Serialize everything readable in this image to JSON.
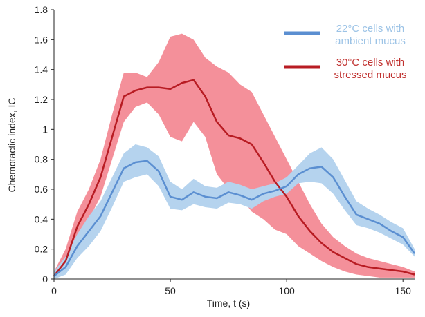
{
  "chart_data": {
    "type": "band-line",
    "x_label": "Time, t (s)",
    "y_label": "Chemotactic index, IC",
    "x": [
      0,
      5,
      10,
      15,
      20,
      25,
      30,
      35,
      40,
      45,
      50,
      55,
      60,
      65,
      70,
      75,
      80,
      85,
      90,
      95,
      100,
      105,
      110,
      115,
      120,
      125,
      130,
      135,
      140,
      145,
      150,
      155
    ],
    "series": [
      {
        "name": "22°C cells with ambient mucus",
        "color": "#5b8fd1",
        "band_color": "#b5d3ee",
        "text_color": "#9cc3e6",
        "values": [
          0.02,
          0.08,
          0.22,
          0.32,
          0.42,
          0.58,
          0.74,
          0.78,
          0.79,
          0.72,
          0.55,
          0.53,
          0.58,
          0.55,
          0.54,
          0.58,
          0.56,
          0.53,
          0.57,
          0.59,
          0.62,
          0.7,
          0.74,
          0.75,
          0.68,
          0.55,
          0.43,
          0.4,
          0.37,
          0.32,
          0.28,
          0.17
        ],
        "upper": [
          0.05,
          0.15,
          0.3,
          0.42,
          0.52,
          0.68,
          0.84,
          0.9,
          0.88,
          0.82,
          0.65,
          0.6,
          0.67,
          0.62,
          0.61,
          0.65,
          0.63,
          0.6,
          0.62,
          0.64,
          0.68,
          0.76,
          0.84,
          0.88,
          0.8,
          0.66,
          0.52,
          0.47,
          0.43,
          0.38,
          0.34,
          0.2
        ],
        "lower": [
          0,
          0.03,
          0.14,
          0.22,
          0.32,
          0.48,
          0.65,
          0.68,
          0.7,
          0.62,
          0.47,
          0.46,
          0.5,
          0.48,
          0.47,
          0.51,
          0.5,
          0.47,
          0.52,
          0.55,
          0.57,
          0.64,
          0.65,
          0.64,
          0.57,
          0.46,
          0.36,
          0.34,
          0.31,
          0.27,
          0.23,
          0.15
        ]
      },
      {
        "name": "30°C cells with stressed mucus",
        "color": "#b81c23",
        "band_color": "#f4909a",
        "text_color": "#c0302e",
        "values": [
          0.02,
          0.12,
          0.35,
          0.5,
          0.68,
          0.95,
          1.22,
          1.26,
          1.28,
          1.28,
          1.27,
          1.31,
          1.33,
          1.22,
          1.05,
          0.96,
          0.94,
          0.9,
          0.78,
          0.65,
          0.55,
          0.42,
          0.32,
          0.24,
          0.18,
          0.14,
          0.1,
          0.08,
          0.07,
          0.06,
          0.05,
          0.03
        ],
        "upper": [
          0.05,
          0.2,
          0.45,
          0.6,
          0.8,
          1.1,
          1.38,
          1.38,
          1.35,
          1.45,
          1.62,
          1.64,
          1.6,
          1.48,
          1.42,
          1.38,
          1.3,
          1.25,
          1.1,
          0.95,
          0.8,
          0.65,
          0.5,
          0.37,
          0.28,
          0.22,
          0.17,
          0.14,
          0.12,
          0.1,
          0.08,
          0.05
        ],
        "lower": [
          0,
          0.05,
          0.25,
          0.4,
          0.55,
          0.8,
          1.05,
          1.15,
          1.18,
          1.1,
          0.95,
          0.92,
          1.05,
          0.95,
          0.7,
          0.6,
          0.55,
          0.45,
          0.4,
          0.33,
          0.3,
          0.22,
          0.17,
          0.12,
          0.08,
          0.05,
          0.03,
          0.02,
          0.01,
          0.01,
          0.01,
          0.01
        ]
      }
    ],
    "xlim": [
      0,
      155
    ],
    "ylim": [
      0,
      1.8
    ],
    "xticks": [
      0,
      50,
      100,
      150
    ],
    "yticks": [
      0,
      0.2,
      0.4,
      0.6,
      0.8,
      1,
      1.2,
      1.4,
      1.6,
      1.8
    ]
  }
}
